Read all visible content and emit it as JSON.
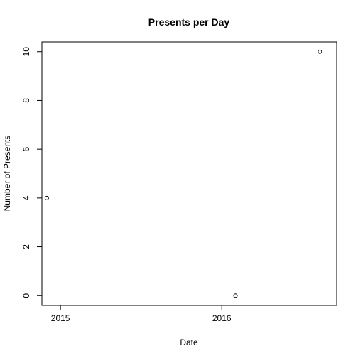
{
  "chart_data": {
    "type": "scatter",
    "title": "Presents per Day",
    "xlabel": "Date",
    "ylabel": "Number of Presents",
    "x_axis_type": "date",
    "xlim": [
      "2014-11-20",
      "2016-09-17"
    ],
    "ylim": [
      -0.4,
      10.4
    ],
    "x_ticks": [
      {
        "date": "2015-01-01",
        "label": "2015"
      },
      {
        "date": "2016-01-01",
        "label": "2016"
      }
    ],
    "y_ticks": [
      {
        "value": 0,
        "label": "0"
      },
      {
        "value": 2,
        "label": "2"
      },
      {
        "value": 4,
        "label": "4"
      },
      {
        "value": 6,
        "label": "6"
      },
      {
        "value": 8,
        "label": "8"
      },
      {
        "value": 10,
        "label": "10"
      }
    ],
    "points": [
      {
        "x": "2014-12-01",
        "y": 4
      },
      {
        "x": "2016-02-01",
        "y": 0
      },
      {
        "x": "2016-08-10",
        "y": 10
      }
    ],
    "marker": "open-circle",
    "grid": false,
    "legend": "none"
  }
}
